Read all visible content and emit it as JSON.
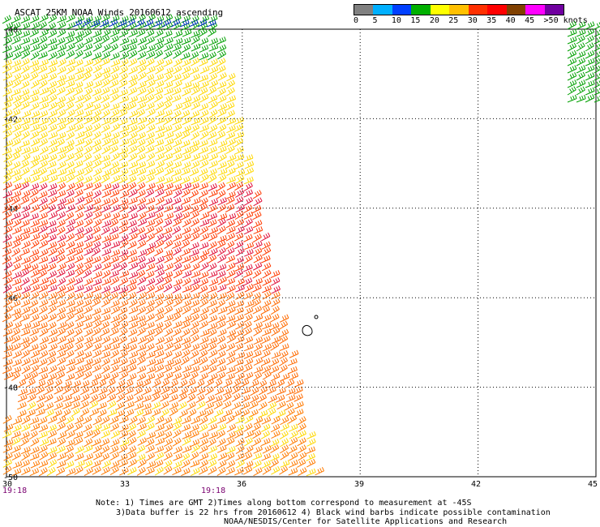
{
  "title": "ASCAT 25KM NOAA Winds 20160612 ascending",
  "legend": {
    "ticks": [
      "0",
      "5",
      "10",
      "15",
      "20",
      "25",
      "30",
      "35",
      "40",
      "45",
      ">50 knots"
    ],
    "colors": [
      "#808080",
      "#00b0ff",
      "#0040ff",
      "#00b000",
      "#ffff00",
      "#ffc000",
      "#ff3000",
      "#ff0000",
      "#804000",
      "#ff00ff",
      "#7000a0"
    ]
  },
  "axes": {
    "lon_ticks": [
      "30",
      "33",
      "36",
      "39",
      "42",
      "45"
    ],
    "lat_ticks": [
      "-40",
      "-42",
      "-44",
      "-46",
      "-48",
      "-50"
    ]
  },
  "times": [
    "19:18",
    "19:18"
  ],
  "notes": [
    "Note: 1) Times are GMT 2)Times along bottom correspond to measurement at -45S",
    "3)Data buffer is 22 hrs from 20160612 4) Black wind barbs indicate possible contamination",
    "NOAA/NESDIS/Center for Satellite Applications and Research"
  ],
  "wind_bands": [
    {
      "lat_range": "-40 to -41",
      "color": "#00a000",
      "knots": "15-20"
    },
    {
      "lat_range": "-41 to -44",
      "color": "#ffff00",
      "knots": "20-25"
    },
    {
      "lat_range": "-44 to -46",
      "color": "#ff3000",
      "knots": "30-35"
    },
    {
      "lat_range": "-46 to -50",
      "color": "#ff6000",
      "knots": "25-30"
    }
  ]
}
